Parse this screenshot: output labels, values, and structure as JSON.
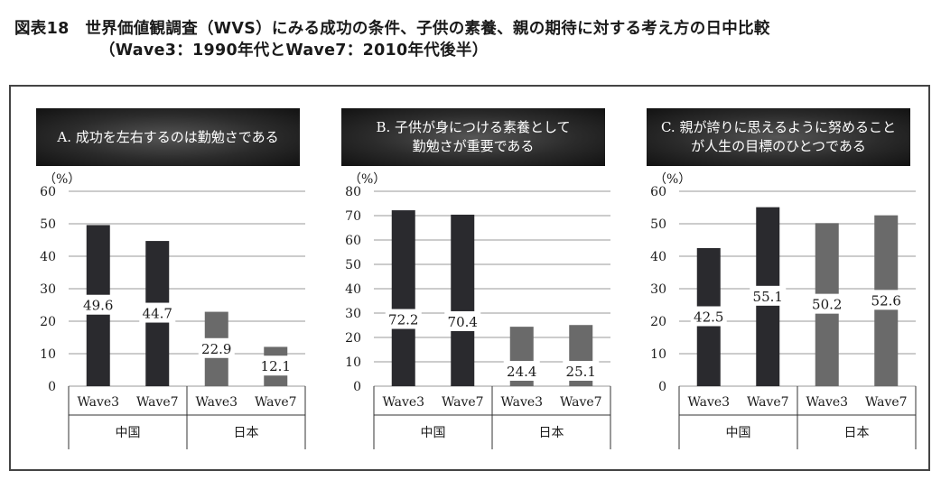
{
  "figure": {
    "title_line1": "図表18　世界価値観調査（WVS）にみる成功の条件、子供の素養、親の期待に対する考え方の日中比較",
    "title_line2": "（Wave3：1990年代とWave7：2010年代後半）"
  },
  "colors": {
    "china": "#2a2a2e",
    "japan": "#6a6a6a",
    "grid": "#999999"
  },
  "chart_data": [
    {
      "type": "bar",
      "title": "A. 成功を左右するのは勤勉さである",
      "unit": "（%）",
      "ylim": [
        0,
        60
      ],
      "yticks": [
        0,
        10,
        20,
        30,
        40,
        50,
        60
      ],
      "categories": [
        "Wave3",
        "Wave7",
        "Wave3",
        "Wave7"
      ],
      "groups": [
        "中国",
        "日本"
      ],
      "values": [
        49.6,
        44.7,
        22.9,
        12.1
      ],
      "labels": [
        "49.6",
        "44.7",
        "22.9",
        "12.1"
      ]
    },
    {
      "type": "bar",
      "title": "B. 子供が身につける素養として\n勤勉さが重要である",
      "unit": "（%）",
      "ylim": [
        0,
        80
      ],
      "yticks": [
        0,
        10,
        20,
        30,
        40,
        50,
        60,
        70,
        80
      ],
      "categories": [
        "Wave3",
        "Wave7",
        "Wave3",
        "Wave7"
      ],
      "groups": [
        "中国",
        "日本"
      ],
      "values": [
        72.2,
        70.4,
        24.4,
        25.1
      ],
      "labels": [
        "72.2",
        "70.4",
        "24.4",
        "25.1"
      ]
    },
    {
      "type": "bar",
      "title": "C. 親が誇りに思えるように努めること\nが人生の目標のひとつである",
      "unit": "（%）",
      "ylim": [
        0,
        60
      ],
      "yticks": [
        0,
        10,
        20,
        30,
        40,
        50,
        60
      ],
      "categories": [
        "Wave3",
        "Wave7",
        "Wave3",
        "Wave7"
      ],
      "groups": [
        "中国",
        "日本"
      ],
      "values": [
        42.5,
        55.1,
        50.2,
        52.6
      ],
      "labels": [
        "42.5",
        "55.1",
        "50.2",
        "52.6"
      ]
    }
  ]
}
